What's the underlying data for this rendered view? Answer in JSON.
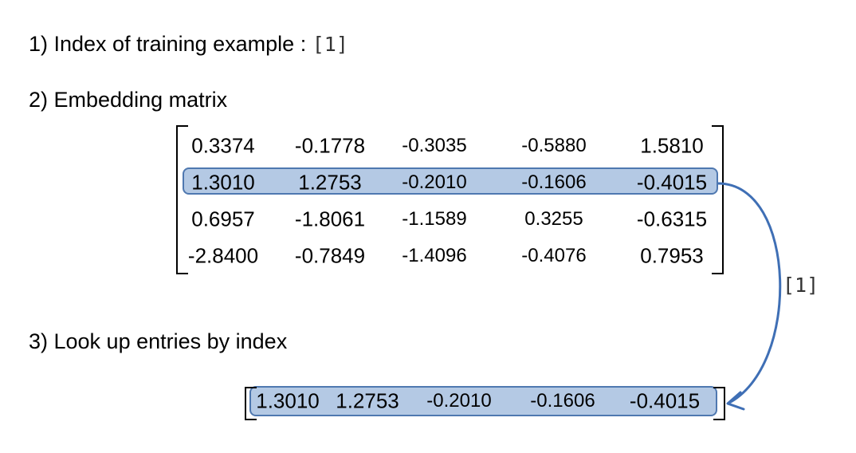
{
  "steps": {
    "step1_text": "1) Index of training example :",
    "step1_index": "[1]",
    "step2_text": "2) Embedding matrix",
    "step3_text": "3) Look up entries by index"
  },
  "matrix": [
    [
      "0.3374",
      "-0.1778",
      "-0.3035",
      "-0.5880",
      "1.5810"
    ],
    [
      "1.3010",
      "1.2753",
      "-0.2010",
      "-0.1606",
      "-0.4015"
    ],
    [
      "0.6957",
      "-1.8061",
      "-1.1589",
      "0.3255",
      "-0.6315"
    ],
    [
      "-2.8400",
      "-0.7849",
      "-1.4096",
      "-0.4076",
      "0.7953"
    ]
  ],
  "highlighted_row": 1,
  "lookup_label": "[1]",
  "output_row": [
    "1.3010",
    "1.2753",
    "-0.2010",
    "-0.1606",
    "-0.4015"
  ],
  "colors": {
    "highlight_fill": "#b4c9e4",
    "highlight_border": "#4f78b0",
    "arrow": "#3f6fb5"
  }
}
